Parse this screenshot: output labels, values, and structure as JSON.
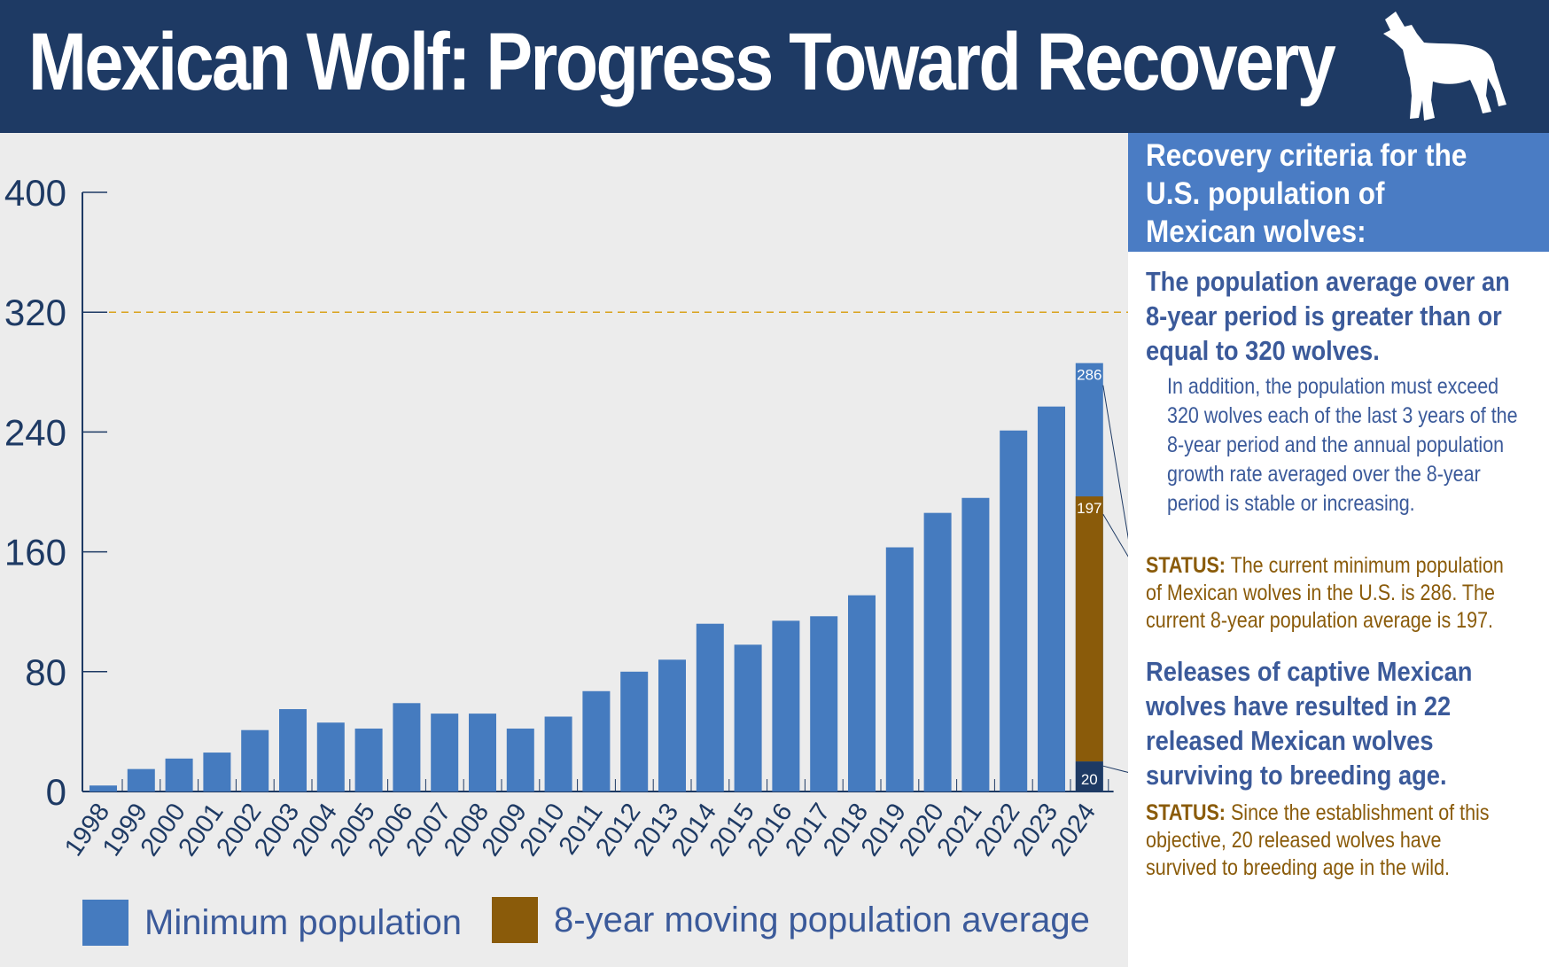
{
  "header": {
    "title": "Mexican Wolf: Progress Toward Recovery",
    "icon": "howling-wolf-icon"
  },
  "chart_data": {
    "type": "bar",
    "title": "",
    "xlabel": "",
    "ylabel": "",
    "ylim": [
      0,
      400
    ],
    "yticks": [
      "0",
      "80",
      "160",
      "240",
      "320",
      "400"
    ],
    "categories": [
      "1998",
      "1999",
      "2000",
      "2001",
      "2002",
      "2003",
      "2004",
      "2005",
      "2006",
      "2007",
      "2008",
      "2009",
      "2010",
      "2011",
      "2012",
      "2013",
      "2014",
      "2015",
      "2016",
      "2017",
      "2018",
      "2019",
      "2020",
      "2021",
      "2022",
      "2023",
      "2024"
    ],
    "series": [
      {
        "name": "Minimum population",
        "color": "#457bbf",
        "values": [
          4,
          15,
          22,
          26,
          41,
          55,
          46,
          42,
          59,
          52,
          52,
          42,
          50,
          67,
          80,
          88,
          112,
          98,
          114,
          117,
          131,
          163,
          186,
          196,
          241,
          257,
          286
        ]
      },
      {
        "name": "8-year moving population average",
        "color": "#8a5b0a",
        "values": [
          null,
          null,
          null,
          null,
          null,
          null,
          null,
          null,
          null,
          null,
          null,
          null,
          null,
          null,
          null,
          null,
          null,
          null,
          null,
          null,
          null,
          null,
          null,
          null,
          null,
          null,
          197
        ]
      }
    ],
    "released_surviving": {
      "category": "2024",
      "value": 20,
      "color": "#1e3a64"
    },
    "data_labels": {
      "min_2024": "286",
      "avg_2024": "197",
      "released_2024": "20"
    },
    "reference_line": {
      "value": 320,
      "color": "#d9a21b",
      "style": "dashed"
    },
    "legend": [
      "Minimum population",
      "8-year moving population average"
    ],
    "legend_position": "bottom",
    "grid": false
  },
  "panel": {
    "criteria_title": "Recovery criteria for the U.S. population of Mexican wolves:",
    "criterion1": "The population average over an 8-year period is greater than or equal to 320 wolves.",
    "criterion1_detail": "In addition, the population must exceed 320 wolves each of the last 3 years of the 8-year period and the annual population growth rate averaged over the 8-year period is stable or increasing.",
    "status_label": "STATUS:",
    "status1": "The current minimum population of Mexican wolves in the U.S. is 286. The current 8-year population average is 197.",
    "criterion2": "Releases of captive Mexican wolves have resulted in 22 released Mexican wolves surviving to breeding age.",
    "status2": "Since the establishment of this objective, 20 released wolves have survived to breeding age in the wild."
  }
}
